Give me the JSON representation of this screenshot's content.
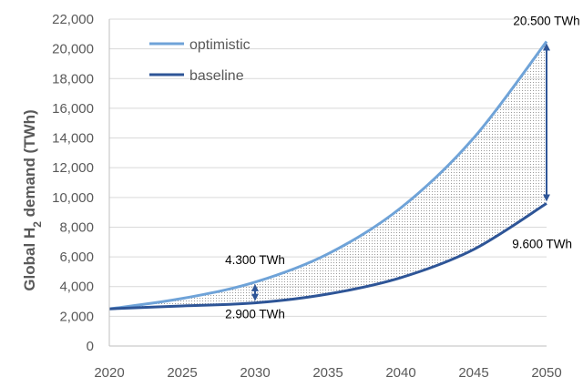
{
  "chart_data": {
    "type": "line",
    "ylabel": {
      "prefix": "Global H",
      "sub": "2",
      "suffix": " demand (TWh)"
    },
    "xlim": [
      2020,
      2050
    ],
    "ylim": [
      0,
      22000
    ],
    "x_ticks": [
      "2020",
      "2025",
      "2030",
      "2035",
      "2040",
      "2045",
      "2050"
    ],
    "y_ticks": [
      "0",
      "2,000",
      "4,000",
      "6,000",
      "8,000",
      "10,000",
      "12,000",
      "14,000",
      "16,000",
      "18,000",
      "20,000",
      "22,000"
    ],
    "grid": "horizontal",
    "legend_position": "top-left",
    "series": [
      {
        "name": "optimistic",
        "color": "#6fa3d8",
        "x": [
          2020,
          2025,
          2030,
          2035,
          2040,
          2045,
          2050
        ],
        "y": [
          2500,
          3200,
          4300,
          6200,
          9300,
          14000,
          20500
        ]
      },
      {
        "name": "baseline",
        "color": "#2e5597",
        "x": [
          2020,
          2025,
          2030,
          2035,
          2040,
          2045,
          2050
        ],
        "y": [
          2500,
          2700,
          2900,
          3500,
          4600,
          6500,
          9600
        ]
      }
    ],
    "shaded_region_between_series": true,
    "annotations": [
      {
        "text": "4.300 TWh",
        "x": 2030,
        "y": 4300
      },
      {
        "text": "2.900 TWh",
        "x": 2030,
        "y": 2900
      },
      {
        "text": "20.500 TWh",
        "x": 2050,
        "y": 20500
      },
      {
        "text": "9.600 TWh",
        "x": 2050,
        "y": 9600
      }
    ],
    "arrow_color": "#2e5597"
  }
}
